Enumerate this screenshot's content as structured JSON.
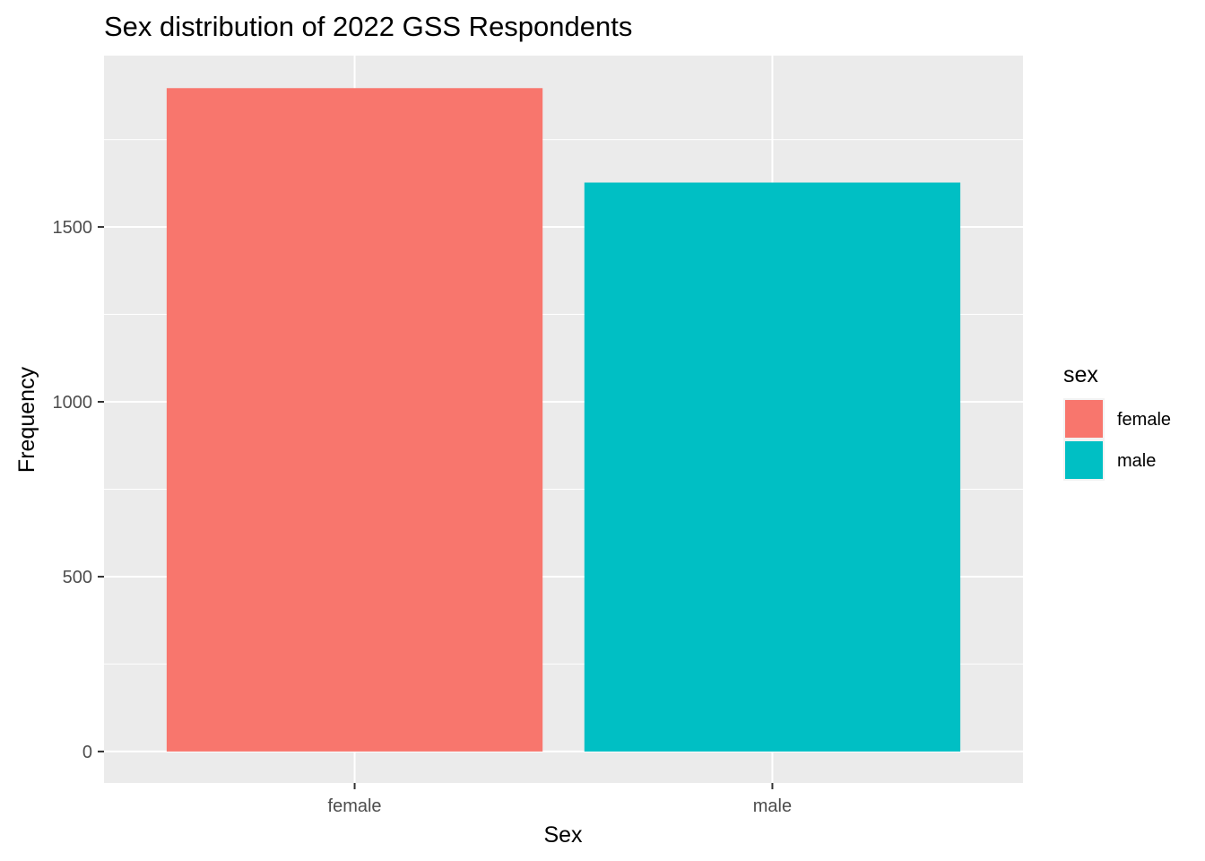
{
  "chart_data": {
    "type": "bar",
    "title": "Sex distribution of 2022 GSS Respondents",
    "xlabel": "Sex",
    "ylabel": "Frequency",
    "categories": [
      "female",
      "male"
    ],
    "values": [
      1897,
      1627
    ],
    "colors": [
      "#F8766D",
      "#00BFC4"
    ],
    "ylim": [
      -90,
      1990
    ],
    "yticks": [
      0,
      500,
      1000,
      1500
    ],
    "grid": true,
    "panel_background": "#EBEBEB",
    "grid_color": "#FFFFFF",
    "legend": {
      "title": "sex",
      "position": "right",
      "entries": [
        {
          "label": "female",
          "color": "#F8766D"
        },
        {
          "label": "male",
          "color": "#00BFC4"
        }
      ]
    }
  }
}
